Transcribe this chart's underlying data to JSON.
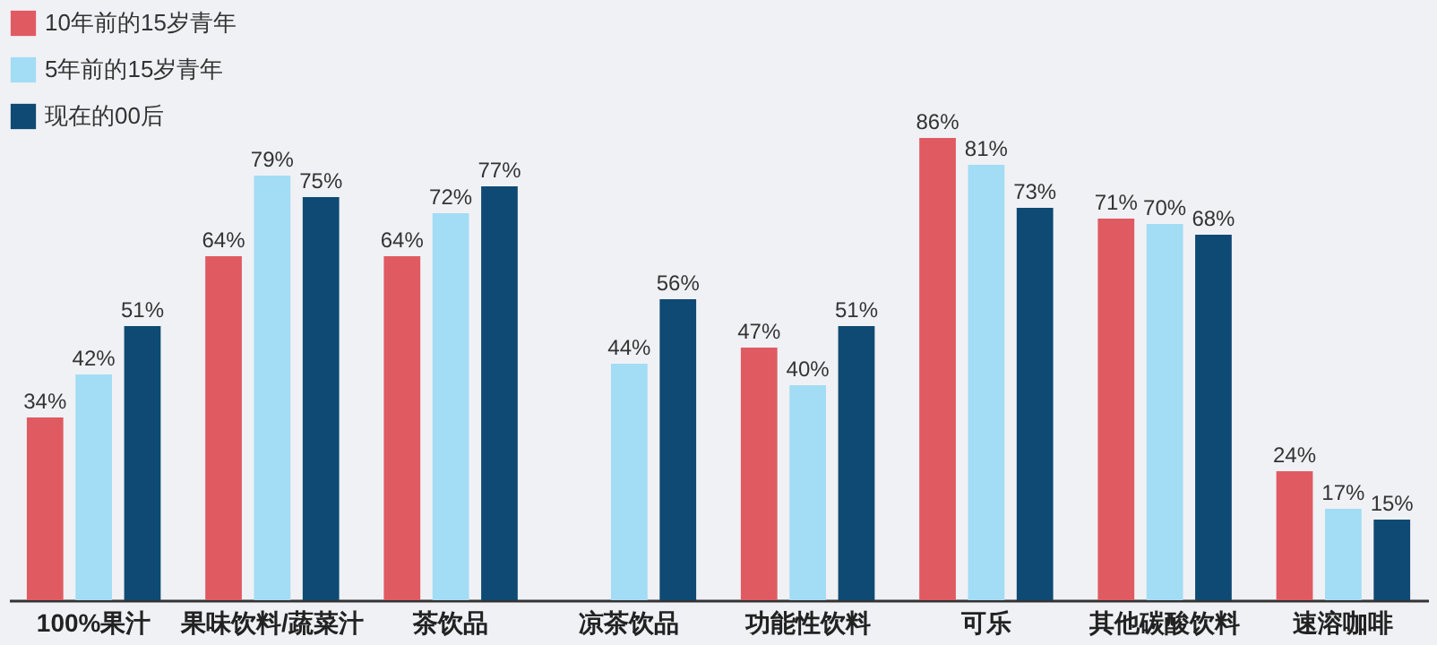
{
  "chart_data": {
    "type": "bar",
    "categories": [
      "100%果汁",
      "果味饮料/蔬菜汁",
      "茶饮品",
      "凉茶饮品",
      "功能性饮料",
      "可乐",
      "其他碳酸饮料",
      "速溶咖啡"
    ],
    "series": [
      {
        "name": "10年前的15岁青年",
        "color": "#e05a62",
        "values": [
          34,
          64,
          64,
          null,
          47,
          86,
          71,
          24
        ],
        "value_labels": [
          "34%",
          "64%",
          "64%",
          null,
          "47%",
          "86%",
          "71%",
          "24%"
        ]
      },
      {
        "name": "5年前的15岁青年",
        "color": "#a3dcf5",
        "values": [
          42,
          79,
          72,
          44,
          40,
          81,
          70,
          17
        ],
        "value_labels": [
          "42%",
          "79%",
          "72%",
          "44%",
          "40%",
          "81%",
          "70%",
          "17%"
        ]
      },
      {
        "name": "现在的00后",
        "color": "#0e4a73",
        "values": [
          51,
          75,
          77,
          56,
          51,
          73,
          68,
          15
        ],
        "value_labels": [
          "51%",
          "75%",
          "77%",
          "56%",
          "51%",
          "73%",
          "68%",
          "15%"
        ]
      }
    ],
    "legend": "top left",
    "grid": false
  }
}
